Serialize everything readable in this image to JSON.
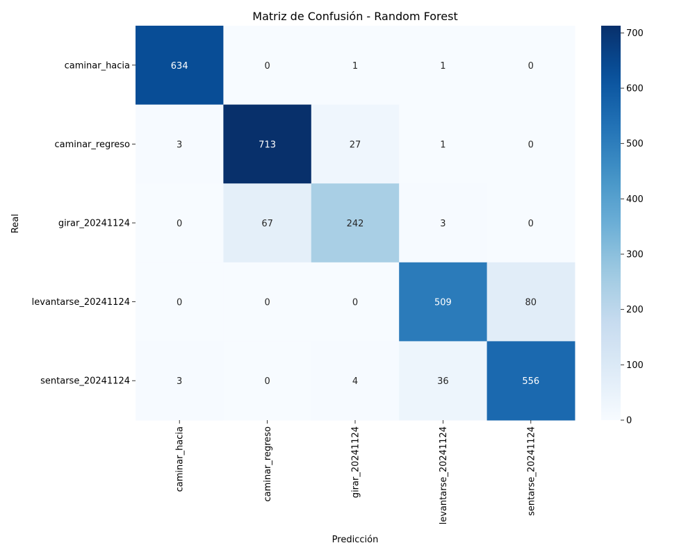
{
  "chart_data": {
    "type": "heatmap",
    "title": "Matriz de Confusión - Random Forest",
    "xlabel": "Predicción",
    "ylabel": "Real",
    "x_categories": [
      "caminar_hacia",
      "caminar_regreso",
      "girar_20241124",
      "levantarse_20241124",
      "sentarse_20241124"
    ],
    "y_categories": [
      "caminar_hacia",
      "caminar_regreso",
      "girar_20241124",
      "levantarse_20241124",
      "sentarse_20241124"
    ],
    "values": [
      [
        634,
        0,
        1,
        1,
        0
      ],
      [
        3,
        713,
        27,
        1,
        0
      ],
      [
        0,
        67,
        242,
        3,
        0
      ],
      [
        0,
        0,
        0,
        509,
        80
      ],
      [
        3,
        0,
        4,
        36,
        556
      ]
    ],
    "colormap": "Blues",
    "colorbar": {
      "min": 0,
      "max": 713,
      "ticks": [
        0,
        100,
        200,
        300,
        400,
        500,
        600,
        700
      ]
    },
    "grid": false
  }
}
